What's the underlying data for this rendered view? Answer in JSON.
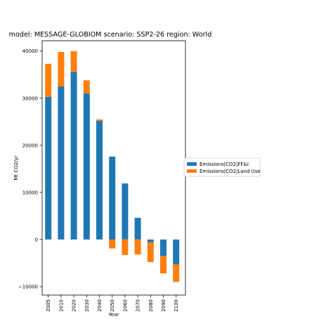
{
  "chart_data": {
    "type": "bar",
    "stacked": true,
    "title": "model: MESSAGE-GLOBIOM scenario: SSP2-26 region: World",
    "xlabel": "Year",
    "ylabel": "Mt CO2/yr",
    "categories": [
      "2005",
      "2010",
      "2020",
      "2030",
      "2040",
      "2050",
      "2060",
      "2070",
      "2080",
      "2090",
      "2100"
    ],
    "series": [
      {
        "name": "Emissions|CO2|FF&I",
        "color": "#1f77b4",
        "values": [
          30300,
          32500,
          35600,
          31000,
          25200,
          17600,
          11900,
          4600,
          -600,
          -3500,
          -5300
        ]
      },
      {
        "name": "Emissions|CO2|Land Use",
        "color": "#ff7f0e",
        "values": [
          7000,
          7300,
          4400,
          2800,
          300,
          -1900,
          -3300,
          -3200,
          -4200,
          -3700,
          -3700
        ]
      }
    ],
    "ylim": [
      -11800,
      42200
    ],
    "yticks": [
      -10000,
      0,
      10000,
      20000,
      30000,
      40000
    ],
    "ytick_labels": [
      "−10000",
      "0",
      "10000",
      "20000",
      "30000",
      "40000"
    ],
    "legend_position": "right, outside plot area",
    "grid": false
  }
}
